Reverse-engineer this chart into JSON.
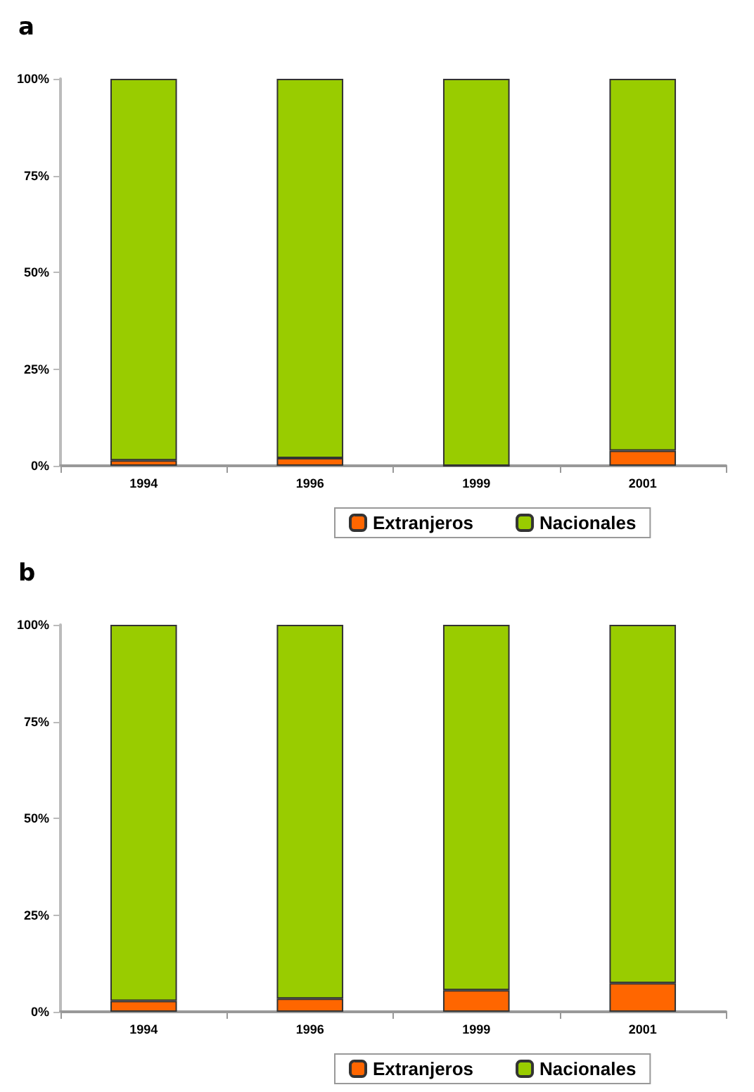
{
  "chart_data": [
    {
      "type": "bar",
      "title": "a",
      "categories": [
        "1994",
        "1996",
        "1999",
        "2001"
      ],
      "stacked": true,
      "ylim": [
        0,
        100
      ],
      "yticks": [
        {
          "value": 0,
          "label": "0%"
        },
        {
          "value": 25,
          "label": "25%"
        },
        {
          "value": 50,
          "label": "50%"
        },
        {
          "value": 75,
          "label": "75%"
        },
        {
          "value": 100,
          "label": "100%"
        }
      ],
      "grid": false,
      "legend": "bottom",
      "series": [
        {
          "name": "Extranjeros",
          "color": "#ff6600",
          "values": [
            1.4,
            2.0,
            0,
            3.9
          ]
        },
        {
          "name": "Nacionales",
          "color": "#99cc00",
          "values": [
            98.6,
            98.0,
            100,
            96.1
          ]
        }
      ]
    },
    {
      "type": "bar",
      "title": "b",
      "categories": [
        "1994",
        "1996",
        "1999",
        "2001"
      ],
      "stacked": true,
      "ylim": [
        0,
        100
      ],
      "yticks": [
        {
          "value": 0,
          "label": "0%"
        },
        {
          "value": 25,
          "label": "25%"
        },
        {
          "value": 50,
          "label": "50%"
        },
        {
          "value": 75,
          "label": "75%"
        },
        {
          "value": 100,
          "label": "100%"
        }
      ],
      "grid": false,
      "legend": "bottom",
      "series": [
        {
          "name": "Extranjeros",
          "color": "#ff6600",
          "values": [
            2.8,
            3.4,
            5.6,
            7.4
          ]
        },
        {
          "name": "Nacionales",
          "color": "#99cc00",
          "values": [
            97.2,
            96.6,
            94.4,
            92.6
          ]
        }
      ]
    }
  ]
}
